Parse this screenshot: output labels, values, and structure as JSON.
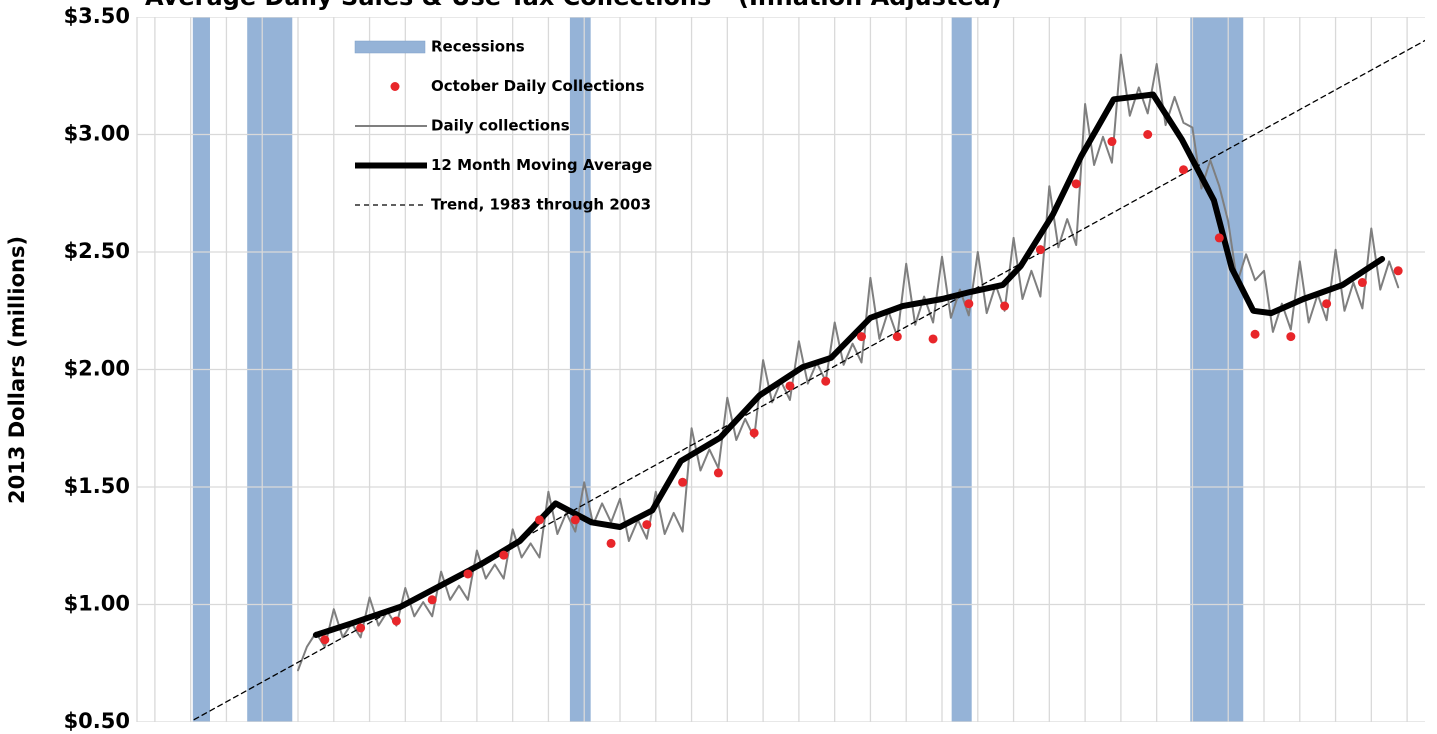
{
  "chart_data": {
    "type": "line",
    "title": "Average Daily Sales & Use Tax Collections - (Inflation Adjusted)",
    "y_label": "2013 Dollars (millions)",
    "xlim": [
      -0.5,
      35.5
    ],
    "ylim": [
      0.5,
      3.5
    ],
    "yticks": [
      {
        "value": 0.5,
        "label": "$0.50"
      },
      {
        "value": 1.0,
        "label": "$1.00"
      },
      {
        "value": 1.5,
        "label": "$1.50"
      },
      {
        "value": 2.0,
        "label": "$2.00"
      },
      {
        "value": 2.5,
        "label": "$2.50"
      },
      {
        "value": 3.0,
        "label": "$3.00"
      },
      {
        "value": 3.5,
        "label": "$3.50"
      }
    ],
    "grid": true,
    "recessions": {
      "name": "Recessions",
      "color": "#95b3d7",
      "ranges": [
        [
          1.06,
          1.54
        ],
        [
          2.58,
          3.84
        ],
        [
          11.6,
          12.18
        ],
        [
          22.27,
          22.83
        ],
        [
          28.94,
          30.42
        ]
      ]
    },
    "series": [
      {
        "name": "October Daily Collections",
        "color": "#e8262a",
        "style": "markers",
        "x": [
          4.75,
          5.75,
          6.75,
          7.75,
          8.75,
          9.75,
          10.75,
          11.75,
          12.75,
          13.75,
          14.75,
          15.75,
          16.75,
          17.75,
          18.75,
          19.75,
          20.75,
          21.75,
          22.75,
          23.75,
          24.75,
          25.75,
          26.75,
          27.75,
          28.75,
          29.75,
          30.75,
          31.75,
          32.75,
          33.75,
          34.75
        ],
        "values": [
          0.85,
          0.9,
          0.93,
          1.02,
          1.13,
          1.21,
          1.36,
          1.36,
          1.26,
          1.34,
          1.52,
          1.56,
          1.73,
          1.93,
          1.95,
          2.14,
          2.14,
          2.13,
          2.28,
          2.27,
          2.51,
          2.79,
          2.97,
          3.0,
          2.85,
          2.56,
          2.15,
          2.14,
          2.28,
          2.37,
          2.42
        ]
      },
      {
        "name": "Daily collections",
        "color": "#7f7f7f",
        "style": "line",
        "width": 2,
        "x": [
          4,
          4.25,
          4.5,
          4.75,
          5,
          5.25,
          5.5,
          5.75,
          6,
          6.25,
          6.5,
          6.75,
          7,
          7.25,
          7.5,
          7.75,
          8,
          8.25,
          8.5,
          8.75,
          9,
          9.25,
          9.5,
          9.75,
          10,
          10.25,
          10.5,
          10.75,
          11,
          11.25,
          11.5,
          11.75,
          12,
          12.25,
          12.5,
          12.75,
          13,
          13.25,
          13.5,
          13.75,
          14,
          14.25,
          14.5,
          14.75,
          15,
          15.25,
          15.5,
          15.75,
          16,
          16.25,
          16.5,
          16.75,
          17,
          17.25,
          17.5,
          17.75,
          18,
          18.25,
          18.5,
          18.75,
          19,
          19.25,
          19.5,
          19.75,
          20,
          20.25,
          20.5,
          20.75,
          21,
          21.25,
          21.5,
          21.75,
          22,
          22.25,
          22.5,
          22.75,
          23,
          23.25,
          23.5,
          23.75,
          24,
          24.25,
          24.5,
          24.75,
          25,
          25.25,
          25.5,
          25.75,
          26,
          26.25,
          26.5,
          26.75,
          27,
          27.25,
          27.5,
          27.75,
          28,
          28.25,
          28.5,
          28.75,
          29,
          29.25,
          29.5,
          29.75,
          30,
          30.25,
          30.5,
          30.75,
          31,
          31.25,
          31.5,
          31.75,
          32,
          32.25,
          32.5,
          32.75,
          33,
          33.25,
          33.5,
          33.75,
          34,
          34.25,
          34.5,
          34.75
        ],
        "values": [
          0.72,
          0.82,
          0.88,
          0.82,
          0.98,
          0.86,
          0.92,
          0.86,
          1.03,
          0.91,
          0.97,
          0.91,
          1.07,
          0.95,
          1.01,
          0.95,
          1.14,
          1.02,
          1.08,
          1.02,
          1.23,
          1.11,
          1.17,
          1.11,
          1.32,
          1.2,
          1.26,
          1.2,
          1.48,
          1.3,
          1.39,
          1.31,
          1.52,
          1.34,
          1.43,
          1.35,
          1.45,
          1.27,
          1.36,
          1.28,
          1.48,
          1.3,
          1.39,
          1.31,
          1.75,
          1.57,
          1.66,
          1.58,
          1.88,
          1.7,
          1.79,
          1.71,
          2.04,
          1.86,
          1.95,
          1.87,
          2.12,
          1.94,
          2.03,
          1.95,
          2.2,
          2.02,
          2.11,
          2.03,
          2.39,
          2.13,
          2.25,
          2.14,
          2.45,
          2.19,
          2.31,
          2.2,
          2.48,
          2.22,
          2.34,
          2.23,
          2.5,
          2.24,
          2.36,
          2.25,
          2.56,
          2.3,
          2.42,
          2.31,
          2.78,
          2.52,
          2.64,
          2.53,
          3.13,
          2.87,
          2.99,
          2.88,
          3.34,
          3.08,
          3.2,
          3.09,
          3.3,
          3.04,
          3.16,
          3.05,
          3.03,
          2.77,
          2.89,
          2.78,
          2.63,
          2.37,
          2.49,
          2.38,
          2.42,
          2.16,
          2.28,
          2.17,
          2.46,
          2.2,
          2.32,
          2.21,
          2.51,
          2.25,
          2.37,
          2.26,
          2.6,
          2.34,
          2.46,
          2.35
        ]
      },
      {
        "name": "12 Month Moving Average",
        "color": "#000000",
        "style": "line",
        "width": 6,
        "x": [
          4.5,
          5.5,
          6.86,
          7.98,
          9.1,
          10.2,
          11.2,
          12.2,
          13.0,
          13.9,
          14.7,
          15.8,
          16.9,
          18.1,
          18.9,
          20.0,
          20.9,
          22.0,
          22.8,
          23.7,
          24.2,
          25.1,
          25.9,
          26.8,
          27.9,
          28.7,
          29.6,
          30.1,
          30.7,
          31.2,
          32.1,
          33.2,
          34.3
        ],
        "values": [
          0.87,
          0.92,
          0.99,
          1.08,
          1.17,
          1.27,
          1.43,
          1.35,
          1.33,
          1.4,
          1.61,
          1.71,
          1.89,
          2.01,
          2.05,
          2.22,
          2.27,
          2.3,
          2.33,
          2.36,
          2.44,
          2.66,
          2.91,
          3.15,
          3.17,
          2.98,
          2.72,
          2.43,
          2.25,
          2.24,
          2.3,
          2.36,
          2.47
        ]
      },
      {
        "name": "Trend, 1983 through 2003",
        "color": "#000000",
        "style": "line",
        "width": 1.3,
        "dash": true,
        "x": [
          1.1,
          35.5
        ],
        "values": [
          0.51,
          3.4
        ]
      }
    ]
  }
}
